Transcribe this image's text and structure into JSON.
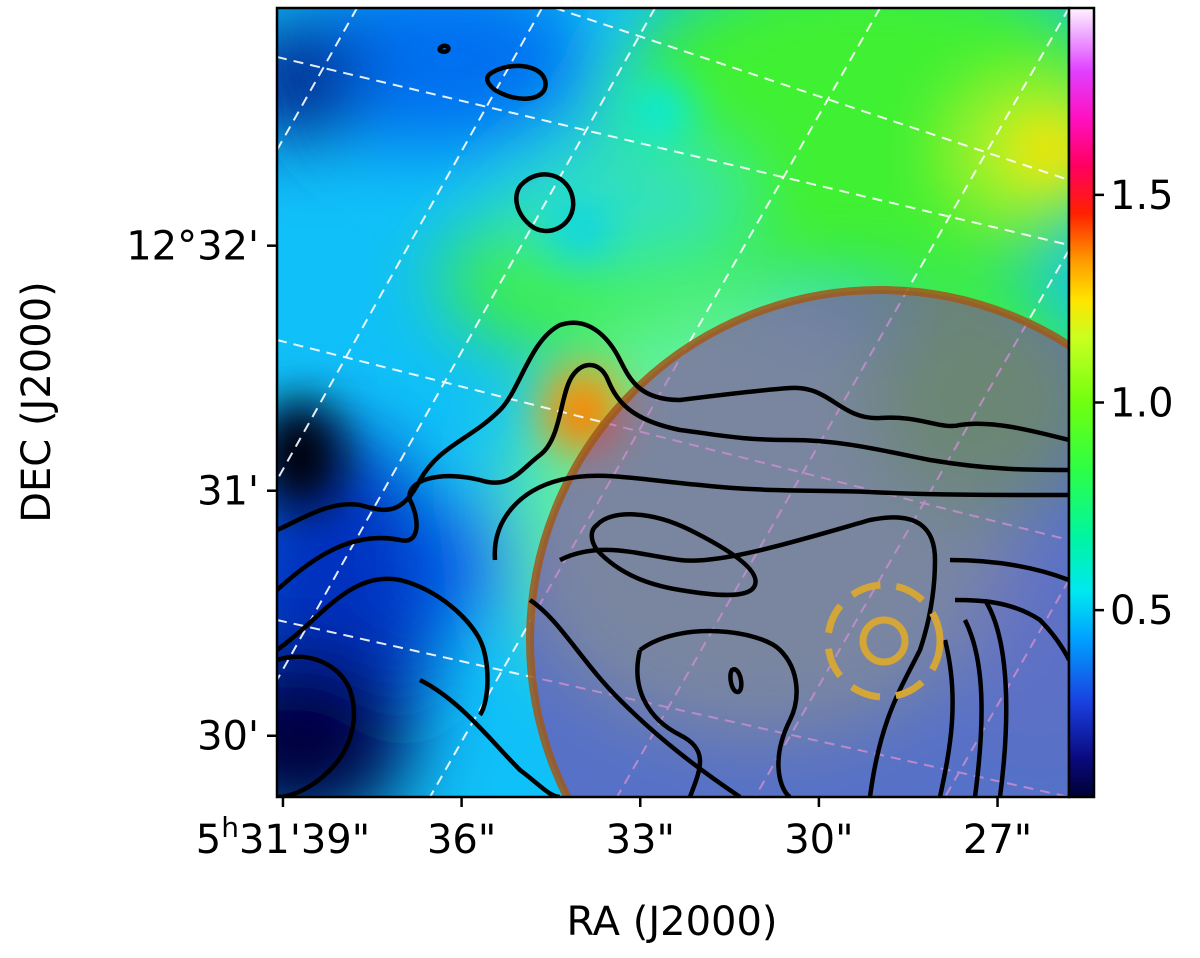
{
  "chart_data": {
    "type": "heatmap",
    "title": "",
    "xlabel": "RA (J2000)",
    "ylabel": "DEC (J2000)",
    "x_ticks": [
      {
        "main": "5",
        "sup": "h",
        "rest": "31'39\"",
        "ra_sec": 39
      },
      {
        "main": "36\"",
        "sup": "",
        "rest": "",
        "ra_sec": 36
      },
      {
        "main": "33\"",
        "sup": "",
        "rest": "",
        "ra_sec": 33
      },
      {
        "main": "30\"",
        "sup": "",
        "rest": "",
        "ra_sec": 30
      },
      {
        "main": "27\"",
        "sup": "",
        "rest": "",
        "ra_sec": 27
      }
    ],
    "xlim_ra_sec": [
      39.1,
      25.8
    ],
    "y_ticks": [
      {
        "label": "12°32'",
        "dec_arcmin": 32
      },
      {
        "label": "31'",
        "dec_arcmin": 31
      },
      {
        "label": "30'",
        "dec_arcmin": 30
      }
    ],
    "ylim_dec_arcmin": [
      29.75,
      32.97
    ],
    "colorbar": {
      "colormap": "gist_ncar",
      "ticks": [
        0.5,
        1.0,
        1.5
      ],
      "tick_labels": [
        "0.5",
        "1.0",
        "1.5"
      ],
      "range": [
        0.05,
        1.95
      ]
    },
    "grid": "dashed white RA/DEC coordinate grid, rotated",
    "overlays": {
      "beam_circle": {
        "color": "#8a5a2a",
        "shading": "purple translucent",
        "center": {
          "ra_sec": 28.7,
          "dec_arcmin": 30.37
        },
        "radius_arcmin": 1.45
      },
      "target_marker": {
        "color": "#d4a537",
        "center": {
          "ra_sec": 28.8,
          "dec_arcmin": 30.37
        }
      }
    },
    "contours": {
      "color": "#000000",
      "count": 5
    }
  }
}
